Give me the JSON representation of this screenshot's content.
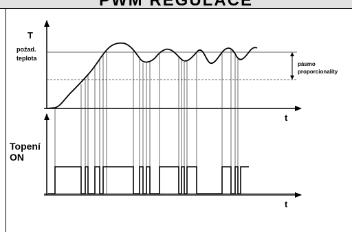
{
  "header": {
    "title": "PWM REGULACE"
  },
  "upper_chart": {
    "y_axis_label": "T",
    "x_axis_label": "t",
    "setpoint_label_line1": "požad.",
    "setpoint_label_line2": "teplota",
    "band_label_line1": "pásmo",
    "band_label_line2": "proporcionality"
  },
  "lower_chart": {
    "signal_label_line1": "Topení",
    "signal_label_line2": "ON",
    "x_axis_label": "t"
  },
  "colors": {
    "line": "#000000",
    "grid": "#555555",
    "title_bg": "#e1e1e1"
  }
}
